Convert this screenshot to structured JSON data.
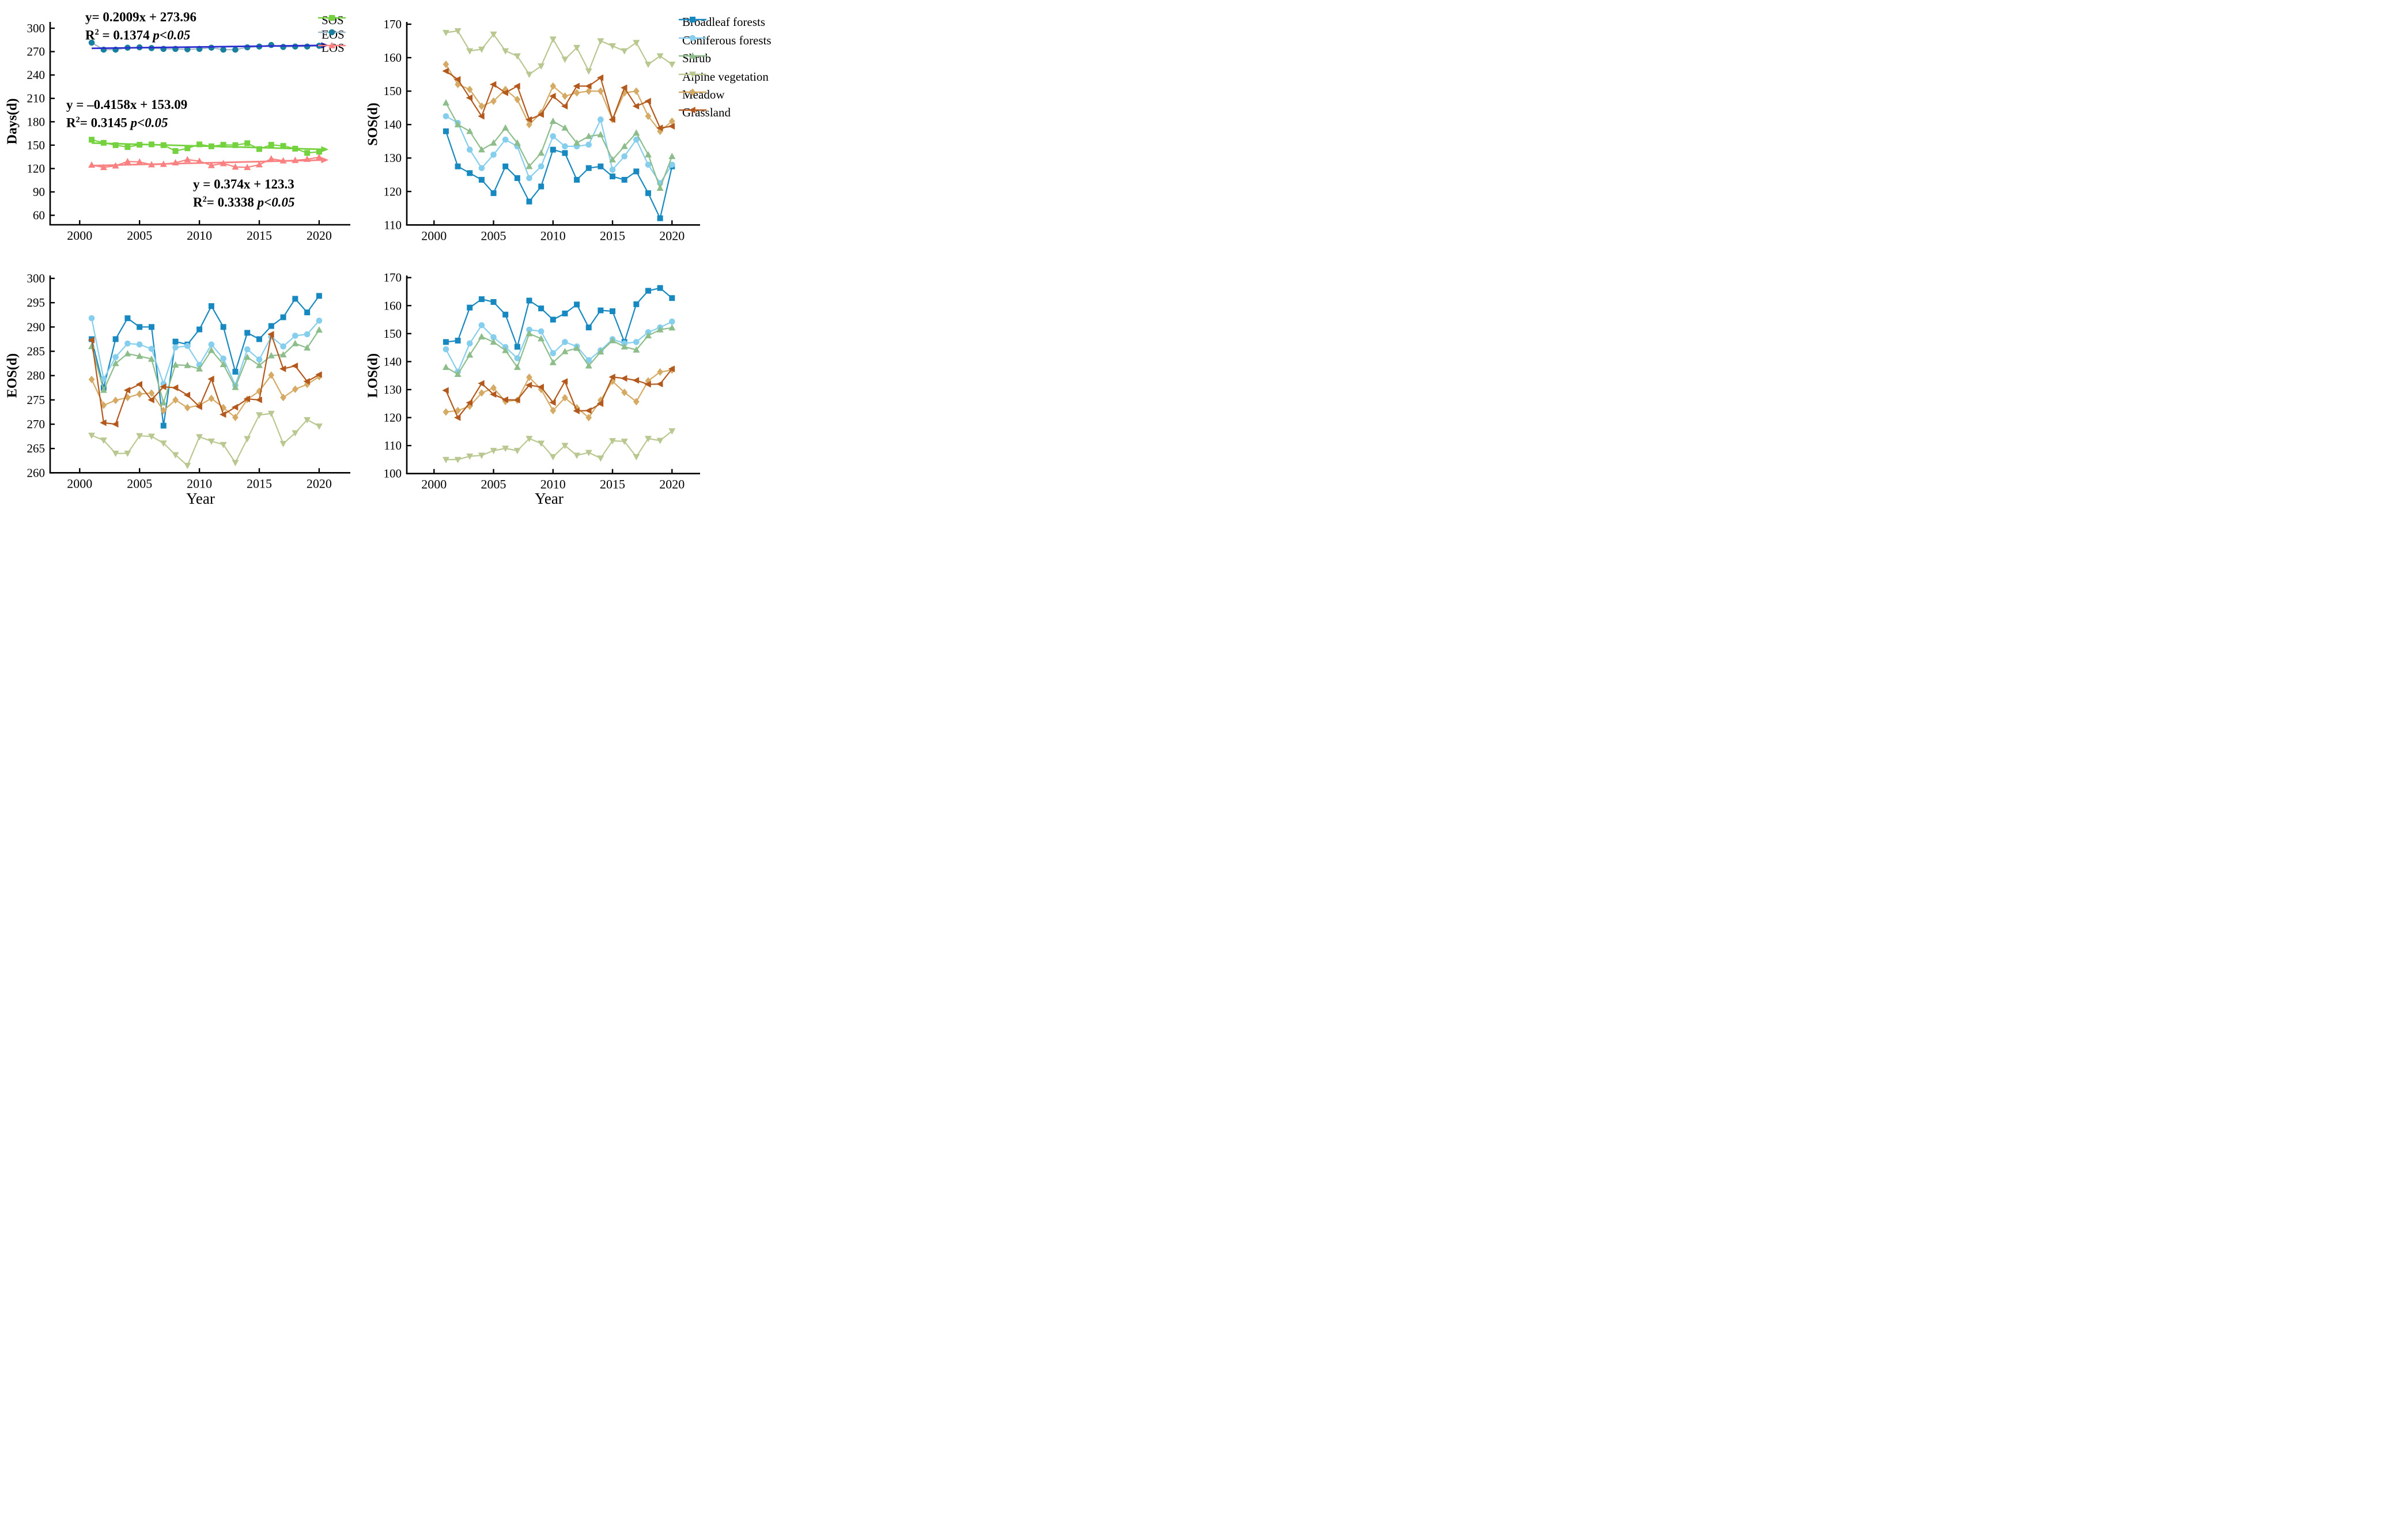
{
  "page": {
    "background": "#ffffff"
  },
  "colors": {
    "broadleaf": "#1789c0",
    "coniferous": "#85ceed",
    "shrub": "#8dbd8b",
    "alpine": "#b9c890",
    "meadow": "#d5aa65",
    "grassland": "#b4591d",
    "sos": "#74d23e",
    "eos_marker": "#187f9f",
    "eos_line": "#a4bac9",
    "los": "#f98181",
    "trend_blue": "#2b2bd0",
    "axis": "#000000"
  },
  "legend_left": {
    "items": [
      {
        "label": "SOS",
        "series": "sos",
        "marker": "square"
      },
      {
        "label": "EOS",
        "series": "eos",
        "marker": "circle"
      },
      {
        "label": "LOS",
        "series": "los",
        "marker": "triangle-up"
      }
    ]
  },
  "legend_right": {
    "items": [
      {
        "label": "Broadleaf forests",
        "series": "broadleaf",
        "marker": "square"
      },
      {
        "label": "Coniferous forests",
        "series": "coniferous",
        "marker": "circle"
      },
      {
        "label": "Shrub",
        "series": "shrub",
        "marker": "triangle-up"
      },
      {
        "label": "Alpine vegetation",
        "series": "alpine",
        "marker": "triangle-down"
      },
      {
        "label": "Meadow",
        "series": "meadow",
        "marker": "diamond"
      },
      {
        "label": "Grassland",
        "series": "grassland",
        "marker": "triangle-left"
      }
    ]
  },
  "equations": {
    "eos": {
      "line1": "y= 0.2009x + 273.96",
      "r2_base": "R",
      "r2_sup": "2",
      "r2_rest": " = 0.1374  ",
      "p": "p<0.05",
      "color": "#2b2bd0"
    },
    "sos": {
      "line1": "y = –0.4158x + 153.09",
      "r2_base": "R",
      "r2_sup": "2",
      "r2_rest": "= 0.3145 ",
      "p": "p<0.05",
      "color": "#74d23e"
    },
    "los": {
      "line1": "y = 0.374x + 123.3",
      "r2_base": "R",
      "r2_sup": "2",
      "r2_rest": "= 0.3338 ",
      "p": "p<0.05",
      "color": "#f98181"
    }
  },
  "chart_data": [
    {
      "id": "top_left",
      "type": "line",
      "title": "",
      "ylabel": "Days(d)",
      "xlabel": "",
      "x": [
        2001,
        2002,
        2003,
        2004,
        2005,
        2006,
        2007,
        2008,
        2009,
        2010,
        2011,
        2012,
        2013,
        2014,
        2015,
        2016,
        2017,
        2018,
        2019,
        2020
      ],
      "xticks": [
        2000,
        2005,
        2010,
        2015,
        2020
      ],
      "yticks": [
        300,
        270,
        240,
        210,
        180,
        150,
        120,
        90,
        60
      ],
      "ylim": [
        60,
        300
      ],
      "xlim": [
        1997.4,
        2022.6
      ],
      "grid": false,
      "legend_position": "upper right outside",
      "series": [
        {
          "name": "SOS",
          "key": "sos",
          "marker": "square",
          "values": [
            157,
            153,
            150,
            147.5,
            150.5,
            151,
            150,
            142.5,
            146,
            151,
            148.5,
            150.5,
            150,
            152.5,
            145,
            150.5,
            149,
            145.5,
            140,
            141.5
          ]
        },
        {
          "name": "EOS",
          "key": "eos",
          "marker": "circle",
          "values": [
            281.5,
            272.5,
            272.5,
            275,
            275.5,
            274.5,
            273.5,
            273.5,
            273,
            273.5,
            275,
            272.5,
            272.5,
            275.5,
            276.5,
            278.5,
            276,
            276.5,
            276.5,
            277.5
          ]
        },
        {
          "name": "LOS",
          "key": "los",
          "marker": "triangle-up",
          "values": [
            124.5,
            121.5,
            123.5,
            129,
            128.5,
            125,
            125.5,
            127.5,
            131.5,
            129.5,
            124,
            126.5,
            122,
            121.5,
            125,
            132.5,
            130,
            130.5,
            132,
            134.5
          ]
        }
      ],
      "trends": [
        {
          "for": "EOS",
          "equation": "y= 0.2009x + 273.96",
          "r2": 0.1374,
          "p": "p<0.05",
          "x1": 2001,
          "v1": 274.2,
          "x2": 2020.6,
          "v2": 278.1,
          "color_key": "trend_blue"
        },
        {
          "for": "SOS",
          "equation": "y = -0.4158x + 153.09",
          "r2": 0.3145,
          "p": "p<0.05",
          "x1": 2001,
          "v1": 152.7,
          "x2": 2020.6,
          "v2": 144.5,
          "color_key": "sos"
        },
        {
          "for": "LOS",
          "equation": "y = 0.374x + 123.3",
          "r2": 0.3338,
          "p": "p<0.05",
          "x1": 2001,
          "v1": 123.7,
          "x2": 2020.6,
          "v2": 131.0,
          "color_key": "los"
        }
      ]
    },
    {
      "id": "top_right",
      "type": "line",
      "title": "",
      "ylabel": "SOS(d)",
      "xlabel": "",
      "x": [
        2001,
        2002,
        2003,
        2004,
        2005,
        2006,
        2007,
        2008,
        2009,
        2010,
        2011,
        2012,
        2013,
        2014,
        2015,
        2016,
        2017,
        2018,
        2019,
        2020
      ],
      "xticks": [
        2000,
        2005,
        2010,
        2015,
        2020
      ],
      "yticks": [
        170,
        160,
        150,
        140,
        130,
        120,
        110
      ],
      "ylim": [
        110,
        170
      ],
      "xlim": [
        1997.7,
        2022.4
      ],
      "grid": false,
      "series": [
        {
          "name": "Broadleaf forests",
          "key": "broadleaf",
          "marker": "square",
          "values": [
            138,
            127.5,
            125.5,
            123.5,
            119.5,
            127.5,
            124,
            117,
            121.5,
            132.5,
            131.5,
            123.5,
            127,
            127.5,
            124.5,
            123.5,
            126,
            119.5,
            112,
            127.5
          ]
        },
        {
          "name": "Coniferous forests",
          "key": "coniferous",
          "marker": "circle",
          "values": [
            142.5,
            140.5,
            132.5,
            127,
            131,
            135.5,
            133.5,
            124,
            127.5,
            136.5,
            133.5,
            133.5,
            134,
            141.5,
            126.5,
            130.5,
            135.5,
            128,
            122.5,
            128
          ]
        },
        {
          "name": "Shrub",
          "key": "shrub",
          "marker": "triangle-up",
          "values": [
            146.5,
            140,
            138,
            132.5,
            134.5,
            139,
            134.5,
            127.5,
            131.5,
            141,
            139,
            134.5,
            136.5,
            137,
            129.5,
            133.5,
            137.5,
            131,
            121,
            130.5
          ]
        },
        {
          "name": "Alpine vegetation",
          "key": "alpine",
          "marker": "triangle-down",
          "values": [
            167.5,
            168,
            162,
            162.5,
            167,
            162,
            160.5,
            155,
            157.5,
            165.5,
            159.5,
            163,
            156,
            165,
            163.5,
            162,
            164.5,
            158,
            160.5,
            158
          ]
        },
        {
          "name": "Meadow",
          "key": "meadow",
          "marker": "diamond",
          "values": [
            158,
            152,
            150.5,
            145.5,
            147,
            150.5,
            147.5,
            140,
            143.5,
            151.5,
            148.5,
            149.5,
            150,
            150,
            141.5,
            149.5,
            150,
            142.5,
            138,
            141
          ]
        },
        {
          "name": "Grassland",
          "key": "grassland",
          "marker": "triangle-left",
          "values": [
            156,
            153.5,
            148,
            142.5,
            152,
            149.5,
            151.5,
            141.5,
            143,
            148.5,
            145.5,
            151.5,
            151.5,
            154,
            141.5,
            151,
            145.5,
            147,
            139,
            139.5
          ]
        }
      ],
      "trends": []
    },
    {
      "id": "bottom_left",
      "type": "line",
      "title": "",
      "ylabel": "EOS(d)",
      "xlabel": "Year",
      "x": [
        2001,
        2002,
        2003,
        2004,
        2005,
        2006,
        2007,
        2008,
        2009,
        2010,
        2011,
        2012,
        2013,
        2014,
        2015,
        2016,
        2017,
        2018,
        2019,
        2020
      ],
      "xticks": [
        2000,
        2005,
        2010,
        2015,
        2020
      ],
      "yticks": [
        300,
        295,
        290,
        285,
        280,
        275,
        270,
        265,
        260
      ],
      "ylim": [
        260,
        300
      ],
      "xlim": [
        1997.4,
        2022.6
      ],
      "grid": false,
      "series": [
        {
          "name": "Broadleaf forests",
          "key": "broadleaf",
          "marker": "square",
          "values": [
            287.5,
            277.5,
            287.5,
            291.8,
            290,
            290,
            269.7,
            287,
            286.4,
            289.5,
            294.3,
            290,
            280.8,
            288.8,
            287.5,
            290.2,
            292,
            295.8,
            293,
            296.4
          ]
        },
        {
          "name": "Coniferous forests",
          "key": "coniferous",
          "marker": "circle",
          "values": [
            291.8,
            279.3,
            283.8,
            286.6,
            286.4,
            285.5,
            278.3,
            285.8,
            286.1,
            282.2,
            286.4,
            283.5,
            278,
            285.4,
            283.3,
            288,
            286,
            288.2,
            288.5,
            291.3
          ]
        },
        {
          "name": "Shrub",
          "key": "shrub",
          "marker": "triangle-up",
          "values": [
            286,
            277,
            282.5,
            284.5,
            284,
            283.4,
            274.4,
            282.2,
            282.1,
            281.4,
            285.2,
            282.3,
            277.6,
            283.8,
            282.1,
            284.1,
            284.3,
            286.6,
            285.7,
            289.4
          ]
        },
        {
          "name": "Alpine vegetation",
          "key": "alpine",
          "marker": "triangle-down",
          "values": [
            267.7,
            266.7,
            264,
            264,
            267.6,
            267.5,
            266.1,
            263.7,
            261.5,
            267.4,
            266.5,
            265.8,
            262.1,
            267,
            271.9,
            272.2,
            266,
            268.2,
            270.9,
            269.6
          ]
        },
        {
          "name": "Meadow",
          "key": "meadow",
          "marker": "diamond",
          "values": [
            279.2,
            273.9,
            274.9,
            275.5,
            276.2,
            276.4,
            272.8,
            275,
            273.4,
            273.9,
            275.3,
            273.4,
            271.4,
            275.1,
            276.8,
            280.1,
            275.5,
            277.2,
            278.2,
            279.8
          ]
        },
        {
          "name": "Grassland",
          "key": "grassland",
          "marker": "triangle-left",
          "values": [
            287.3,
            270.3,
            270,
            277,
            278.2,
            275,
            277.7,
            277.5,
            276,
            273.6,
            279.3,
            272,
            273.5,
            275.2,
            275,
            288.5,
            281.4,
            282,
            278.8,
            280.2
          ]
        }
      ],
      "trends": []
    },
    {
      "id": "bottom_right",
      "type": "line",
      "title": "",
      "ylabel": "LOS(d)",
      "xlabel": "Year",
      "x": [
        2001,
        2002,
        2003,
        2004,
        2005,
        2006,
        2007,
        2008,
        2009,
        2010,
        2011,
        2012,
        2013,
        2014,
        2015,
        2016,
        2017,
        2018,
        2019,
        2020
      ],
      "xticks": [
        2000,
        2005,
        2010,
        2015,
        2020
      ],
      "yticks": [
        170,
        160,
        150,
        140,
        130,
        120,
        110,
        100
      ],
      "ylim": [
        100,
        170
      ],
      "xlim": [
        1997.7,
        2022.4
      ],
      "grid": false,
      "series": [
        {
          "name": "Broadleaf forests",
          "key": "broadleaf",
          "marker": "square",
          "values": [
            147,
            147.5,
            159.3,
            162.3,
            161.3,
            156.8,
            145.3,
            161.8,
            159,
            155,
            157.2,
            160.4,
            152.2,
            158.3,
            158,
            147,
            160.5,
            165.3,
            166.3,
            162.7
          ]
        },
        {
          "name": "Coniferous forests",
          "key": "coniferous",
          "marker": "circle",
          "values": [
            144.4,
            136.4,
            146.5,
            153,
            148.7,
            145.2,
            141.2,
            151.4,
            150.8,
            143,
            147,
            145.4,
            140.5,
            144,
            148,
            146.5,
            147,
            150.5,
            152.2,
            154.3
          ]
        },
        {
          "name": "Shrub",
          "key": "shrub",
          "marker": "triangle-up",
          "values": [
            138,
            135.5,
            142.4,
            148.9,
            147,
            144,
            138,
            150,
            148.2,
            139.7,
            143.6,
            144.8,
            138.5,
            143.5,
            147.5,
            145.3,
            144.2,
            149.3,
            151.4,
            152.1
          ]
        },
        {
          "name": "Alpine vegetation",
          "key": "alpine",
          "marker": "triangle-down",
          "values": [
            105,
            105,
            106.2,
            106.5,
            108.2,
            109,
            108.2,
            112.5,
            110.8,
            106,
            110,
            106.5,
            107.5,
            105.5,
            111.7,
            111.5,
            106,
            112.5,
            111.8,
            115.2
          ]
        },
        {
          "name": "Meadow",
          "key": "meadow",
          "marker": "diamond",
          "values": [
            122,
            122.5,
            124.1,
            128.8,
            130.6,
            125.8,
            126.2,
            134.4,
            130.1,
            122.5,
            127.1,
            123.5,
            120,
            126.2,
            133,
            129,
            125.7,
            133.1,
            136.3,
            137
          ]
        },
        {
          "name": "Grassland",
          "key": "grassland",
          "marker": "triangle-left",
          "values": [
            129.7,
            120,
            125.3,
            132.2,
            128.3,
            126.4,
            126.3,
            131.6,
            130.9,
            125.4,
            132.9,
            122.4,
            122.5,
            125,
            134.5,
            134,
            133.3,
            131.9,
            132,
            137.4
          ]
        }
      ],
      "trends": []
    }
  ]
}
